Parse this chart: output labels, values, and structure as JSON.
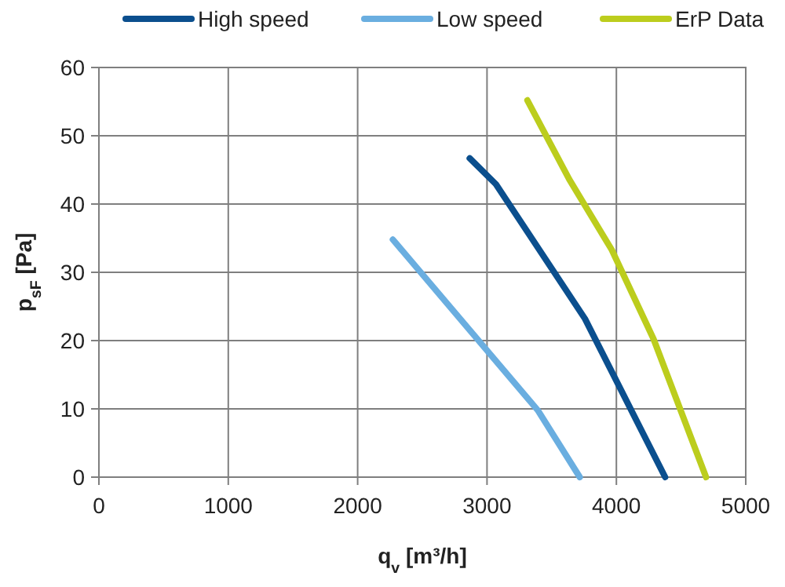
{
  "chart_data": {
    "type": "line",
    "xlabel": "q$_{v}$ [m³/h]",
    "ylabel": "p$_{sF}$ [Pa]",
    "xlim": [
      0,
      5000
    ],
    "ylim": [
      0,
      60
    ],
    "xticks": [
      0,
      1000,
      2000,
      3000,
      4000,
      5000
    ],
    "yticks": [
      0,
      10,
      20,
      30,
      40,
      50,
      60
    ],
    "grid": true,
    "legend": "top",
    "marker": "none",
    "line_style": "solid",
    "series": [
      {
        "name": "High speed",
        "color": "#0b4f8e",
        "x": [
          2866,
          3069,
          3757,
          4377
        ],
        "values": [
          46.7,
          42.9,
          23.2,
          0
        ]
      },
      {
        "name": "Low speed",
        "color": "#6aaee0",
        "x": [
          2272,
          3392,
          3717
        ],
        "values": [
          34.8,
          9.8,
          0
        ]
      },
      {
        "name": "ErP Data",
        "color": "#bccd1d",
        "x": [
          3312,
          3636,
          3964,
          4288,
          4693
        ],
        "values": [
          55.2,
          43.6,
          33.3,
          20.2,
          0
        ]
      }
    ]
  }
}
